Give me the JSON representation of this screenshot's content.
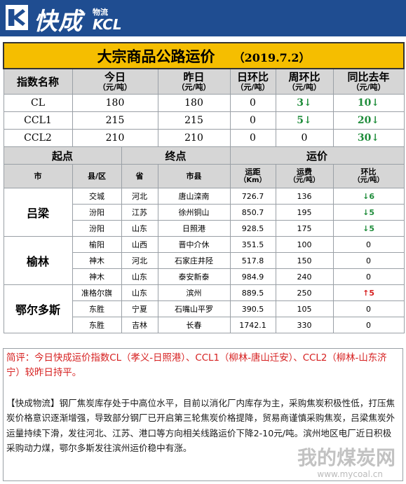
{
  "header": {
    "logo_cn": "快成",
    "logo_sub": "物流",
    "logo_en": "KCL"
  },
  "title": {
    "main": "大宗商品公路运价",
    "date": "（2019.7.2）"
  },
  "index_header": {
    "name": "指数名称",
    "today": "今日",
    "today_unit": "（元/吨）",
    "yesterday": "昨日",
    "yesterday_unit": "（元/吨）",
    "dod": "日环比",
    "dod_unit": "（元/吨）",
    "wow": "周环比",
    "wow_unit": "（元/吨）",
    "yoy": "同比去年",
    "yoy_unit": "（元/吨）"
  },
  "index_rows": [
    {
      "name": "CL",
      "today": "180",
      "yesterday": "180",
      "dod": "0",
      "wow": "3",
      "wow_arrow": "↓",
      "yoy": "10",
      "yoy_arrow": "↓"
    },
    {
      "name": "CCL1",
      "today": "215",
      "yesterday": "215",
      "dod": "0",
      "wow": "5",
      "wow_arrow": "↓",
      "yoy": "20",
      "yoy_arrow": "↓"
    },
    {
      "name": "CCL2",
      "today": "210",
      "yesterday": "210",
      "dod": "0",
      "wow": "0",
      "wow_arrow": "",
      "yoy": "30",
      "yoy_arrow": "↓"
    }
  ],
  "route_header": {
    "origin": "起点",
    "destination": "终点",
    "price": "运价",
    "city": "市",
    "county": "县/区",
    "province": "省",
    "dest_city": "市县",
    "distance": "运距",
    "distance_unit": "（Km）",
    "fee": "运费",
    "fee_unit": "（元/吨）",
    "change": "环比",
    "change_unit": "（元/吨）"
  },
  "route_groups": [
    {
      "city": "吕梁",
      "rows": [
        {
          "county": "交城",
          "province": "河北",
          "dest": "唐山滦南",
          "distance": "726.7",
          "fee": "136",
          "arrow": "↓",
          "change": "6",
          "dir": "down"
        },
        {
          "county": "汾阳",
          "province": "江苏",
          "dest": "徐州铜山",
          "distance": "850.7",
          "fee": "195",
          "arrow": "↓",
          "change": "5",
          "dir": "down"
        },
        {
          "county": "汾阳",
          "province": "山东",
          "dest": "日照港",
          "distance": "928.5",
          "fee": "175",
          "arrow": "↓",
          "change": "5",
          "dir": "down"
        }
      ]
    },
    {
      "city": "榆林",
      "rows": [
        {
          "county": "榆阳",
          "province": "山西",
          "dest": "晋中介休",
          "distance": "351.5",
          "fee": "100",
          "arrow": "",
          "change": "0",
          "dir": "flat"
        },
        {
          "county": "神木",
          "province": "河北",
          "dest": "石家庄井陉",
          "distance": "517.8",
          "fee": "150",
          "arrow": "",
          "change": "0",
          "dir": "flat"
        },
        {
          "county": "神木",
          "province": "山东",
          "dest": "泰安新泰",
          "distance": "984.9",
          "fee": "240",
          "arrow": "",
          "change": "0",
          "dir": "flat"
        }
      ]
    },
    {
      "city": "鄂尔多斯",
      "rows": [
        {
          "county": "准格尔旗",
          "province": "山东",
          "dest": "滨州",
          "distance": "889.5",
          "fee": "250",
          "arrow": "↑",
          "change": "5",
          "dir": "up"
        },
        {
          "county": "东胜",
          "province": "宁夏",
          "dest": "石嘴山平罗",
          "distance": "390.5",
          "fee": "105",
          "arrow": "",
          "change": "0",
          "dir": "flat"
        },
        {
          "county": "东胜",
          "province": "吉林",
          "dest": "长春",
          "distance": "1742.1",
          "fee": "330",
          "arrow": "",
          "change": "0",
          "dir": "flat"
        }
      ]
    }
  ],
  "notes": {
    "brief": "简评：今日快成运价指数CL（孝义-日照港）、CCL1（柳林-唐山迁安）、CCL2（柳林-山东济宁）较昨日持平。",
    "commentary": "【快成物流】钢厂焦炭库存处于中高位水平，目前以消化厂内库存为主，采购焦炭积极性低，打压焦炭价格意识逐渐增强，导致部分钢厂已开启第三轮焦炭价格提降，贸易商谨慎采购焦炭，吕梁焦炭外运量持续下滑，发往河北、江苏、港口等方向相关线路运价下降2-10元/吨。滨州地区电厂近日积极采购动力煤，鄂尔多斯发往滨州运价稳中有涨。"
  },
  "watermark": {
    "text": "我的煤炭网",
    "url": "www.mycoal.cn"
  },
  "colors": {
    "brand": "#1f4d91",
    "title_bg": "#f5be00",
    "header_bg": "#d6d6d6",
    "down": "#1e8c3a",
    "up": "#d62020"
  }
}
